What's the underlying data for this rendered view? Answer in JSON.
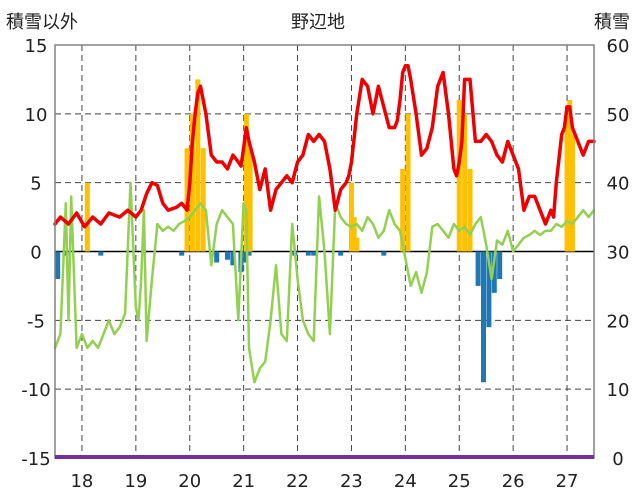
{
  "chart_data": {
    "type": "line",
    "title": "野辺地",
    "ylabel_left": "積雪以外",
    "ylabel_right": "積雪",
    "ylim_left": [
      -15,
      15
    ],
    "ylim_right": [
      0,
      60
    ],
    "yticks_left": [
      "15",
      "10",
      "5",
      "0",
      "-5",
      "-10",
      "-15"
    ],
    "yticks_right": [
      "60",
      "50",
      "40",
      "30",
      "20",
      "10",
      "0"
    ],
    "xlim": [
      17.5,
      27.5
    ],
    "xticks": [
      "18",
      "19",
      "20",
      "21",
      "22",
      "23",
      "24",
      "25",
      "26",
      "27"
    ],
    "grid": true,
    "colors": {
      "red_line": "#ee0000",
      "green_line": "#92d050",
      "orange_bars": "#ffc000",
      "blue_bars": "#1f77b4",
      "purple_baseline": "#7030a0"
    },
    "series": [
      {
        "color": "#ee0000",
        "axis": "left",
        "x": [
          17.5,
          17.6,
          17.75,
          17.9,
          18.05,
          18.2,
          18.35,
          18.5,
          18.7,
          18.85,
          19.0,
          19.1,
          19.2,
          19.3,
          19.4,
          19.5,
          19.6,
          19.75,
          19.85,
          19.95,
          20.0,
          20.05,
          20.1,
          20.15,
          20.2,
          20.3,
          20.4,
          20.5,
          20.6,
          20.7,
          20.8,
          20.9,
          20.95,
          21.0,
          21.05,
          21.1,
          21.2,
          21.3,
          21.4,
          21.5,
          21.6,
          21.7,
          21.8,
          21.9,
          22.0,
          22.1,
          22.2,
          22.3,
          22.4,
          22.5,
          22.6,
          22.7,
          22.8,
          22.9,
          22.95,
          23.0,
          23.1,
          23.2,
          23.3,
          23.4,
          23.5,
          23.6,
          23.7,
          23.8,
          23.85,
          23.9,
          23.95,
          24.0,
          24.05,
          24.1,
          24.2,
          24.3,
          24.4,
          24.5,
          24.6,
          24.7,
          24.8,
          24.9,
          24.95,
          25.0,
          25.05,
          25.1,
          25.2,
          25.3,
          25.4,
          25.5,
          25.6,
          25.7,
          25.8,
          25.9,
          26.0,
          26.1,
          26.2,
          26.3,
          26.4,
          26.5,
          26.6,
          26.7,
          26.75,
          26.8,
          26.9,
          26.95,
          27.0,
          27.05,
          27.1,
          27.2,
          27.3,
          27.4,
          27.5
        ],
        "y": [
          2.0,
          2.5,
          2.0,
          2.8,
          1.8,
          2.5,
          2.0,
          2.8,
          2.5,
          3.0,
          2.5,
          3.0,
          4.2,
          5.0,
          4.8,
          3.5,
          3.0,
          3.2,
          3.5,
          3.0,
          5.0,
          8.0,
          10.0,
          11.5,
          12.0,
          10.0,
          7.0,
          6.5,
          6.5,
          6.0,
          7.0,
          6.5,
          6.2,
          7.5,
          9.0,
          8.0,
          6.5,
          4.5,
          6.0,
          3.0,
          4.5,
          5.0,
          5.5,
          5.0,
          6.5,
          7.0,
          8.5,
          8.0,
          8.5,
          8.0,
          6.0,
          3.0,
          4.5,
          5.0,
          5.5,
          6.5,
          10.0,
          12.5,
          12.0,
          10.0,
          12.0,
          10.5,
          9.0,
          9.0,
          9.5,
          11.0,
          13.0,
          13.5,
          13.5,
          12.5,
          10.0,
          7.0,
          7.5,
          9.0,
          12.0,
          13.0,
          10.0,
          6.0,
          5.5,
          6.5,
          8.0,
          12.5,
          12.5,
          8.0,
          8.0,
          8.5,
          8.0,
          7.0,
          6.5,
          8.0,
          7.0,
          6.0,
          3.0,
          4.0,
          4.0,
          3.0,
          2.0,
          3.0,
          2.5,
          5.0,
          8.5,
          9.0,
          10.5,
          10.5,
          9.0,
          8.0,
          7.0,
          8.0,
          8.0
        ]
      },
      {
        "color": "#92d050",
        "axis": "left",
        "x": [
          17.5,
          17.6,
          17.7,
          17.75,
          17.8,
          17.9,
          18.0,
          18.1,
          18.2,
          18.3,
          18.4,
          18.5,
          18.6,
          18.7,
          18.8,
          18.9,
          19.0,
          19.05,
          19.1,
          19.15,
          19.2,
          19.3,
          19.4,
          19.5,
          19.6,
          19.7,
          19.8,
          19.9,
          20.0,
          20.1,
          20.2,
          20.3,
          20.4,
          20.5,
          20.6,
          20.7,
          20.8,
          20.9,
          21.0,
          21.05,
          21.1,
          21.2,
          21.3,
          21.4,
          21.5,
          21.6,
          21.7,
          21.8,
          21.9,
          22.0,
          22.1,
          22.2,
          22.3,
          22.4,
          22.5,
          22.6,
          22.7,
          22.8,
          22.9,
          23.0,
          23.1,
          23.2,
          23.3,
          23.4,
          23.5,
          23.6,
          23.7,
          23.8,
          23.9,
          24.0,
          24.1,
          24.2,
          24.3,
          24.4,
          24.5,
          24.6,
          24.7,
          24.8,
          24.9,
          25.0,
          25.1,
          25.2,
          25.3,
          25.4,
          25.5,
          25.6,
          25.7,
          25.8,
          25.9,
          26.0,
          26.1,
          26.2,
          26.3,
          26.4,
          26.5,
          26.6,
          26.7,
          26.8,
          26.9,
          27.0,
          27.1,
          27.2,
          27.3,
          27.4,
          27.5
        ],
        "y": [
          -7.0,
          -6.0,
          3.5,
          -5.0,
          4.0,
          -7.0,
          -6.0,
          -7.0,
          -6.5,
          -7.0,
          -6.0,
          -5.0,
          -6.0,
          -5.5,
          -4.5,
          5.0,
          -4.0,
          -5.0,
          -2.0,
          3.0,
          -6.5,
          -2.0,
          2.0,
          1.5,
          1.8,
          1.5,
          2.0,
          2.2,
          2.5,
          3.0,
          3.5,
          3.0,
          -1.0,
          2.0,
          3.0,
          2.5,
          2.0,
          -5.0,
          3.5,
          3.0,
          -7.0,
          -9.5,
          -8.5,
          -8.0,
          -5.0,
          -1.0,
          -6.0,
          -6.5,
          2.0,
          -2.0,
          -5.0,
          -6.0,
          -6.5,
          4.0,
          0.0,
          -6.0,
          3.5,
          2.5,
          2.0,
          1.8,
          2.0,
          1.5,
          2.5,
          2.0,
          1.0,
          1.5,
          3.0,
          2.0,
          1.5,
          -0.5,
          -2.5,
          -1.5,
          -3.0,
          -1.5,
          1.8,
          2.0,
          1.5,
          1.0,
          2.0,
          1.5,
          1.8,
          1.2,
          2.0,
          2.5,
          0.5,
          -2.0,
          0.8,
          0.5,
          1.5,
          0.0,
          0.5,
          1.0,
          1.2,
          1.5,
          1.2,
          1.5,
          1.5,
          2.0,
          1.8,
          2.2,
          2.0,
          2.5,
          3.0,
          2.5,
          3.0
        ]
      },
      {
        "type": "bar",
        "color": "#ffc000",
        "axis": "right",
        "x": [
          18.1,
          19.95,
          20.05,
          20.15,
          20.25,
          21.05,
          21.12,
          23.0,
          23.05,
          23.1,
          23.95,
          24.05,
          25.0,
          25.1,
          25.2,
          27.0,
          27.05,
          27.1
        ],
        "y": [
          40,
          45,
          50,
          55,
          45,
          50,
          45,
          40,
          35,
          32,
          42,
          50,
          52,
          50,
          42,
          50,
          52,
          47
        ]
      },
      {
        "type": "bar",
        "color": "#1f77b4",
        "axis": "left",
        "x": [
          17.55,
          17.7,
          18.35,
          19.85,
          20.5,
          20.7,
          20.8,
          20.95,
          21.0,
          21.1,
          21.95,
          22.2,
          22.3,
          22.8,
          23.6,
          25.35,
          25.45,
          25.55,
          25.65,
          25.75
        ],
        "y": [
          -2.0,
          -0.3,
          -0.3,
          -0.3,
          -0.8,
          -0.6,
          -1.0,
          -1.5,
          -0.8,
          -0.3,
          -0.3,
          -0.3,
          -0.3,
          -0.3,
          -0.3,
          -2.5,
          -9.5,
          -5.5,
          -3.0,
          -2.0
        ]
      }
    ]
  }
}
